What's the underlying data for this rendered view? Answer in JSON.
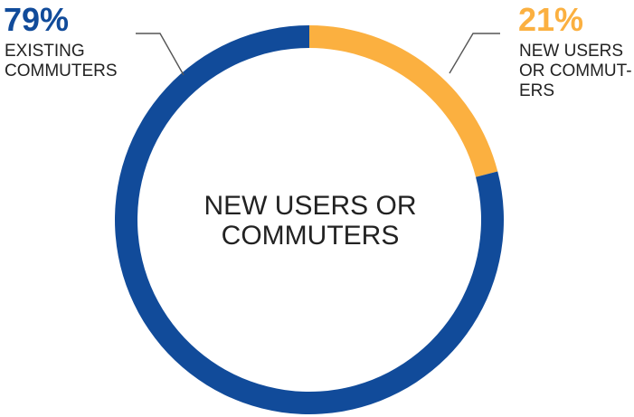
{
  "chart_data": {
    "type": "pie",
    "donut": true,
    "center_label_lines": [
      "NEW USERS OR",
      "COMMUTERS"
    ],
    "slices": [
      {
        "label": "NEW USERS OR COMMUTERS",
        "value": 21,
        "value_label": "21%",
        "label_lines": [
          "NEW USERS",
          "OR COMMUT-",
          "ERS"
        ],
        "color": "#FBB040"
      },
      {
        "label": "EXISTING COMMUTERS",
        "value": 79,
        "value_label": "79%",
        "label_lines": [
          "EXISTING",
          "COMMUTERS"
        ],
        "color": "#114B9A"
      }
    ],
    "legend": "none"
  }
}
